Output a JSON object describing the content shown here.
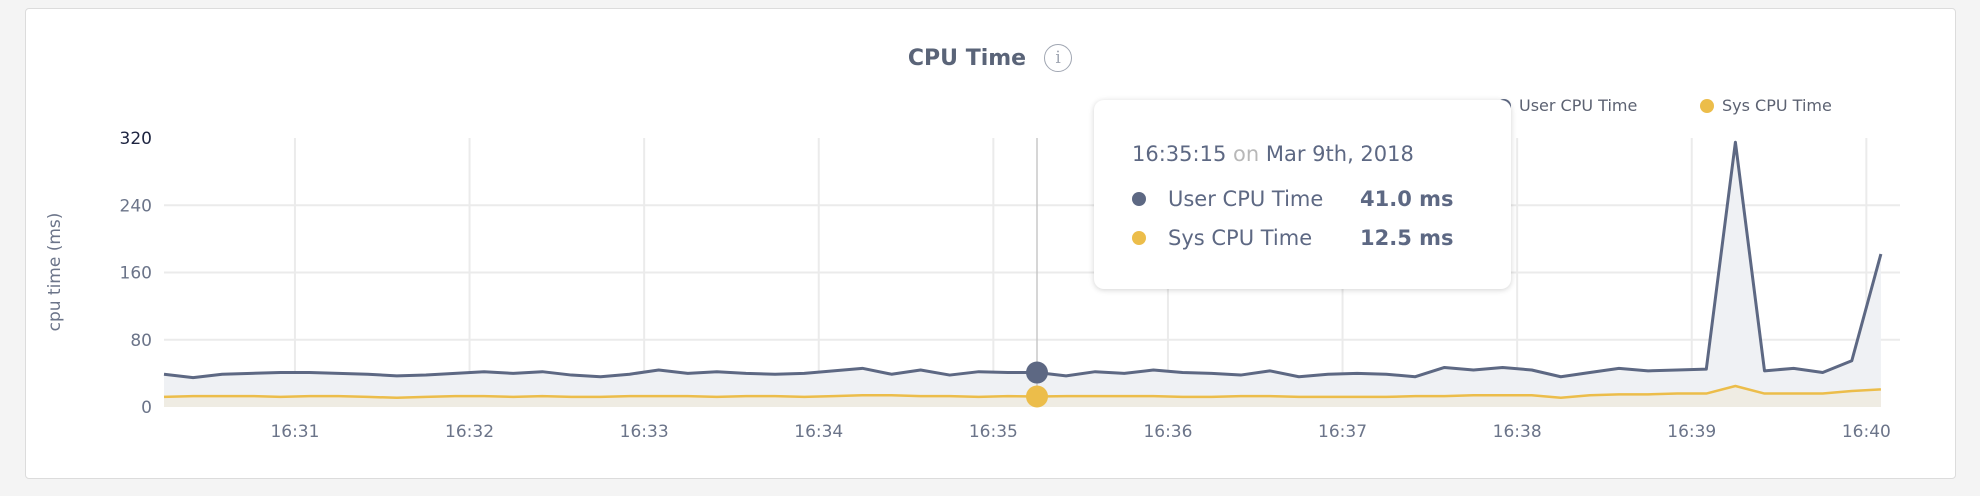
{
  "chart_data": {
    "type": "area",
    "title": "CPU Time",
    "ylabel": "cpu time (ms)",
    "xlabel": "",
    "ylim": [
      0,
      320
    ],
    "yticks": [
      "0",
      "80",
      "160",
      "240",
      "320"
    ],
    "xticks": [
      "16:31",
      "16:32",
      "16:33",
      "16:34",
      "16:35",
      "16:36",
      "16:37",
      "16:38",
      "16:39",
      "16:40"
    ],
    "x_start": "16:30:15",
    "x_step_seconds": 10,
    "grid": true,
    "legend_position": "top-right",
    "series": [
      {
        "name": "User CPU Time",
        "color": "#5d6883",
        "values": [
          39,
          35,
          39,
          40,
          41,
          41,
          40,
          39,
          37,
          38,
          40,
          42,
          40,
          42,
          38,
          36,
          39,
          44,
          40,
          42,
          40,
          39,
          40,
          43,
          46,
          39,
          44,
          38,
          42,
          41,
          41,
          37,
          42,
          40,
          44,
          41,
          40,
          38,
          43,
          36,
          39,
          40,
          39,
          36,
          47,
          44,
          47,
          44,
          36,
          41,
          46,
          43,
          44,
          45,
          315,
          43,
          46,
          41,
          55,
          182
        ]
      },
      {
        "name": "Sys CPU Time",
        "color": "#ecbd4a",
        "values": [
          12,
          13,
          13,
          13,
          12,
          13,
          13,
          12,
          11,
          12,
          13,
          13,
          12,
          13,
          12,
          12,
          13,
          13,
          13,
          12,
          13,
          13,
          12,
          13,
          14,
          14,
          13,
          13,
          12,
          13,
          12.5,
          13,
          13,
          13,
          13,
          12,
          12,
          13,
          13,
          12,
          12,
          12,
          12,
          13,
          13,
          14,
          14,
          14,
          11,
          14,
          15,
          15,
          16,
          16,
          25,
          16,
          16,
          16,
          19,
          21
        ]
      }
    ]
  },
  "header": {
    "title": "CPU Time",
    "info_icon": "info-circle-icon",
    "info_glyph": "i"
  },
  "legend": [
    {
      "label": "User CPU Time",
      "color": "#5d6883"
    },
    {
      "label": "Sys CPU Time",
      "color": "#ecbd4a"
    }
  ],
  "tooltip": {
    "time": "16:35:15",
    "on": "on",
    "date": "Mar 9th, 2018",
    "hover_index": 30,
    "rows": [
      {
        "label": "User CPU Time",
        "value": "41.0 ms",
        "color": "#5d6883"
      },
      {
        "label": "Sys CPU Time",
        "value": "12.5 ms",
        "color": "#ecbd4a"
      }
    ]
  }
}
